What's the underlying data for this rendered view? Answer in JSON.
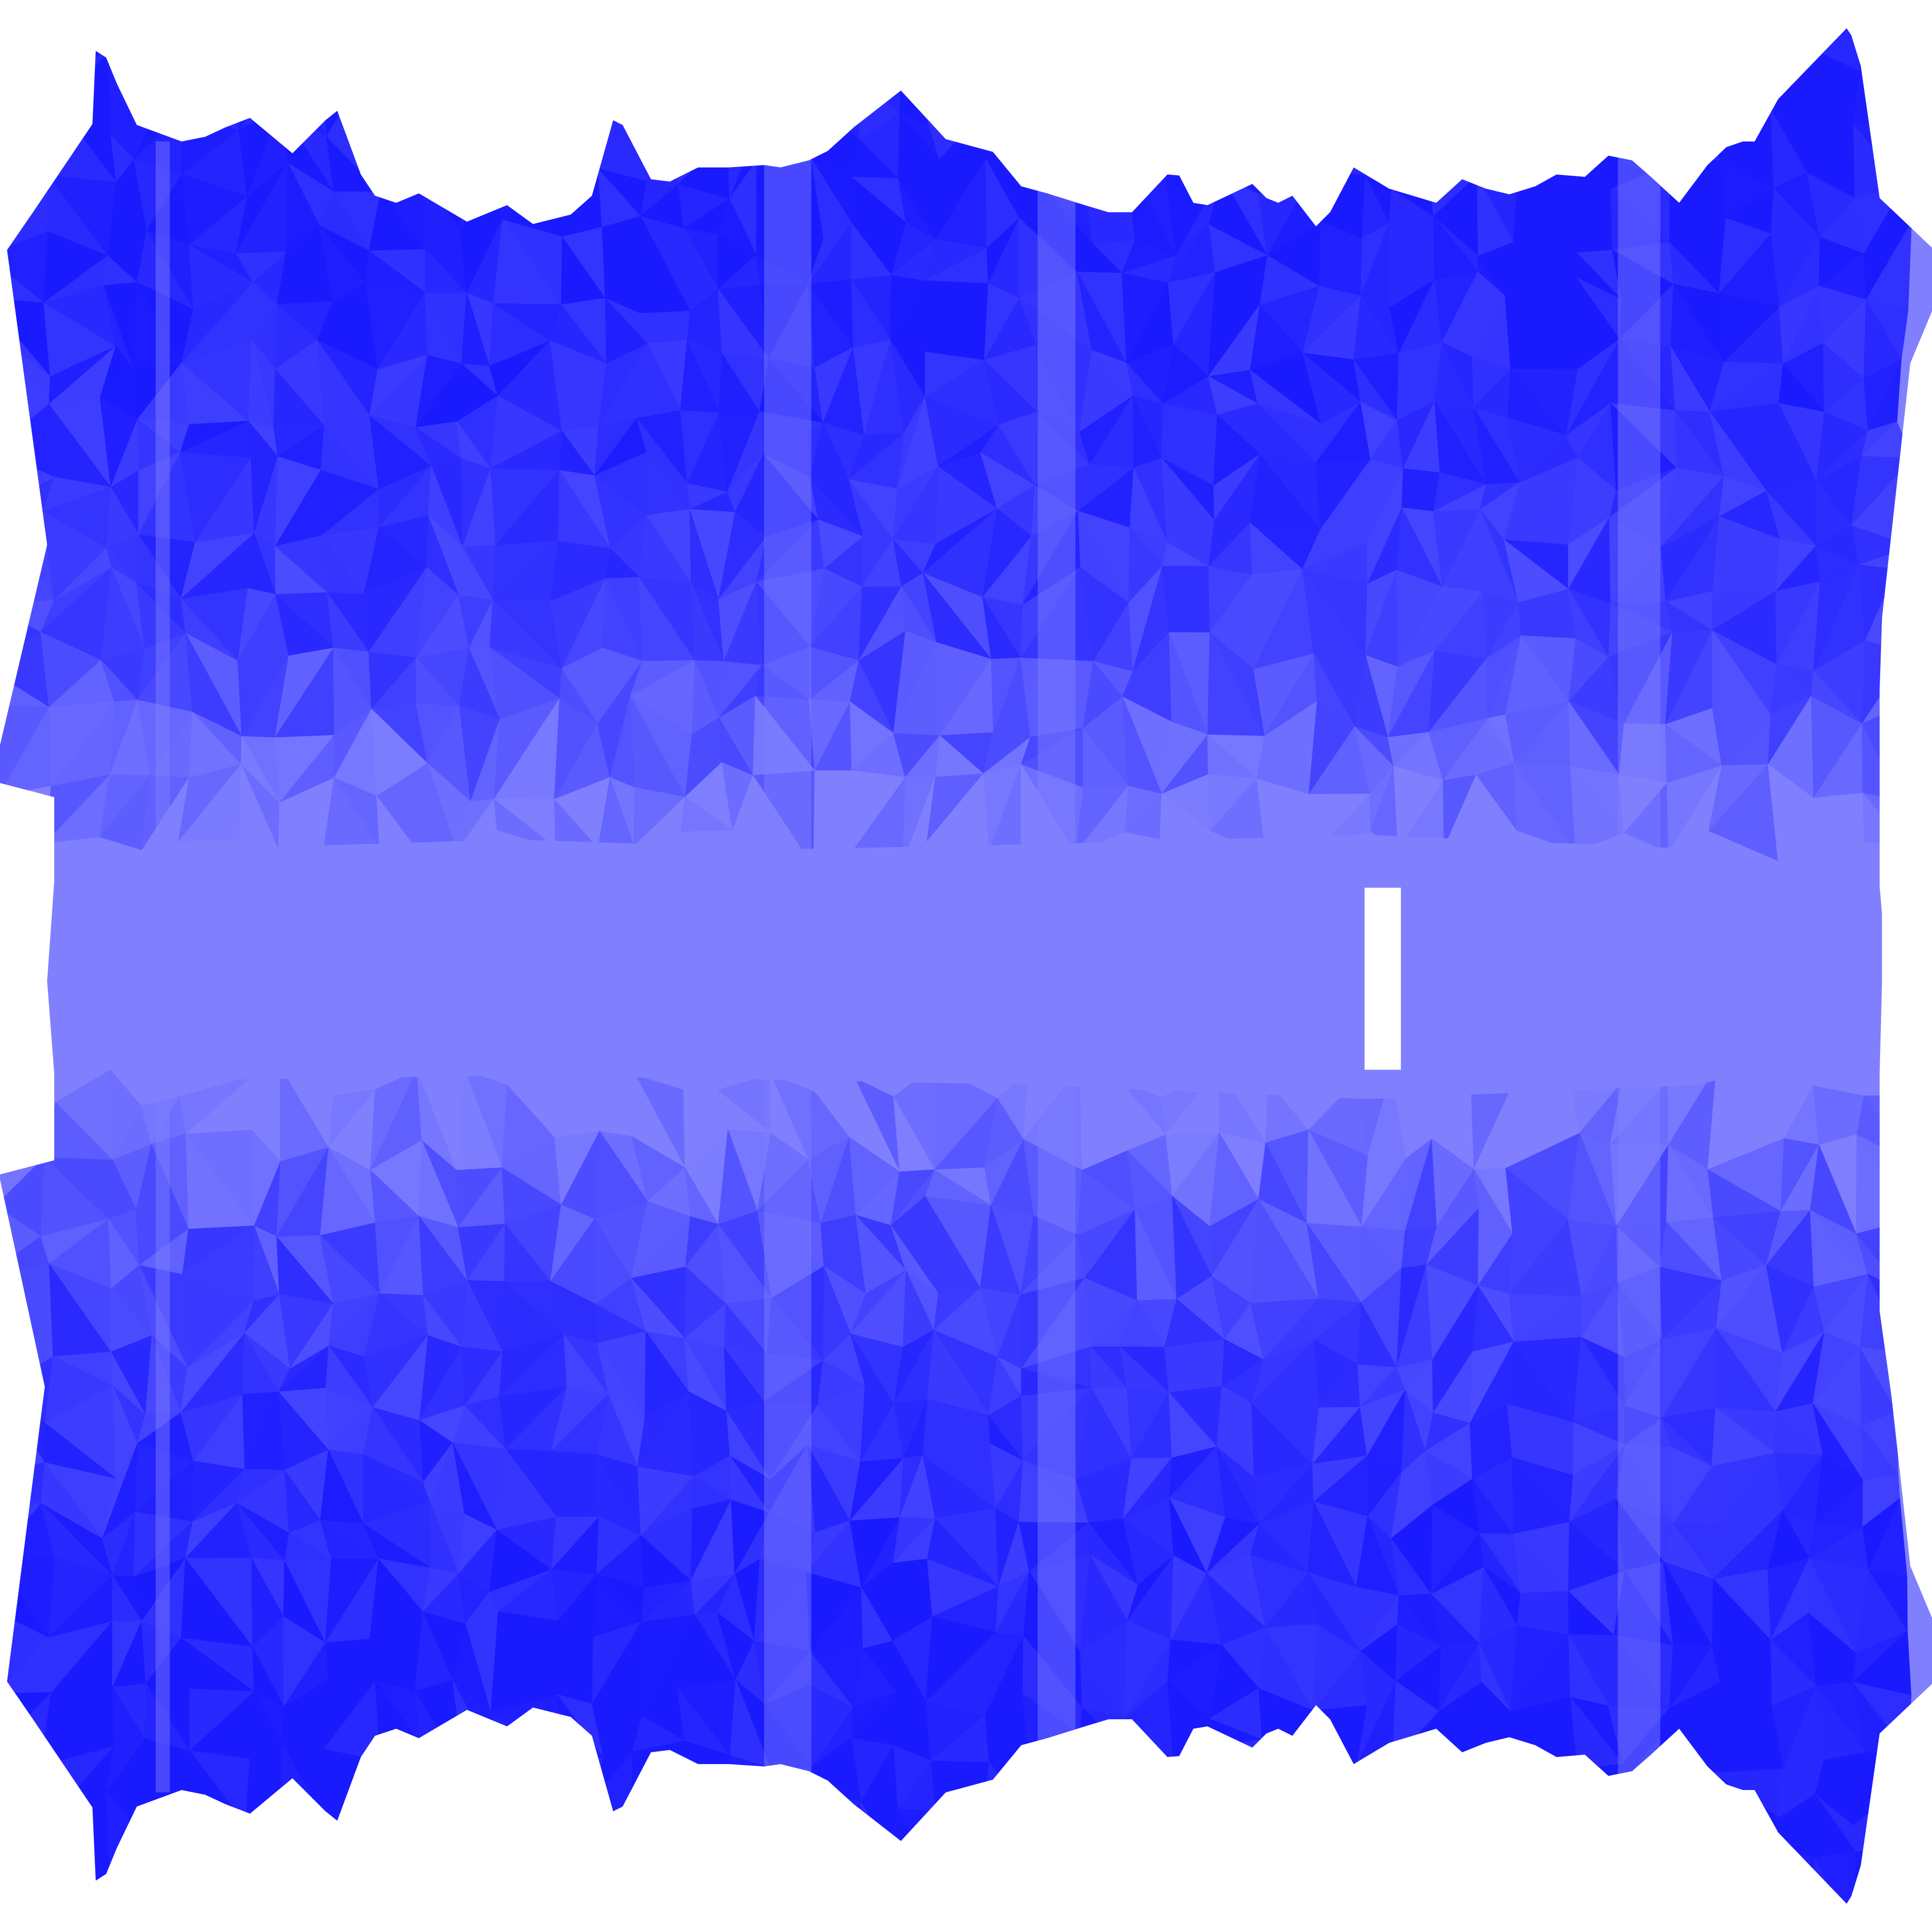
{
  "scene": {
    "background_color": "#ffffff",
    "mesh_colors": {
      "deep": "#1a1aff",
      "mid": "#4545ff",
      "light": "#8080ff"
    },
    "cutout_color": "#ffffff"
  }
}
